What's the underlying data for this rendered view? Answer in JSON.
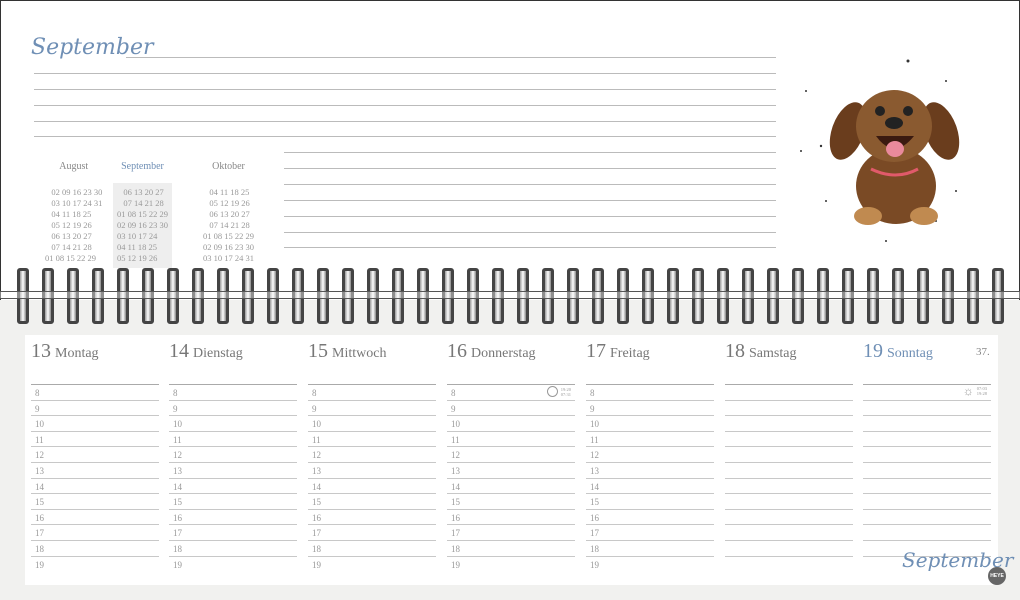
{
  "header": {
    "month_title": "September"
  },
  "mini_calendars": [
    {
      "month": "August",
      "rows": [
        "   02 09 16 23 30",
        "   03 10 17 24 31",
        "   04 11 18 25",
        "   05 12 19 26",
        "   06 13 20 27",
        "   07 14 21 28",
        "01 08 15 22 29"
      ],
      "current": false
    },
    {
      "month": "September",
      "rows": [
        "   06 13 20 27",
        "   07 14 21 28",
        "01 08 15 22 29",
        "02 09 16 23 30",
        "03 10 17 24",
        "04 11 18 25",
        "05 12 19 26"
      ],
      "current": true
    },
    {
      "month": "Oktober",
      "rows": [
        "   04 11 18 25",
        "   05 12 19 26",
        "   06 13 20 27",
        "   07 14 21 28",
        "01 08 15 22 29",
        "02 09 16 23 30",
        "03 10 17 24 31"
      ],
      "current": false
    }
  ],
  "days": [
    {
      "num": "13",
      "name": "Montag"
    },
    {
      "num": "14",
      "name": "Dienstag"
    },
    {
      "num": "15",
      "name": "Mittwoch"
    },
    {
      "num": "16",
      "name": "Donnerstag",
      "icon": "full-moon-icon",
      "times": [
        "19:20",
        "07:31"
      ]
    },
    {
      "num": "17",
      "name": "Freitag"
    },
    {
      "num": "18",
      "name": "Samstag"
    },
    {
      "num": "19",
      "name": "Sonntag",
      "icon": "sun-icon",
      "times": [
        "07:03",
        "19:28"
      ]
    }
  ],
  "hours": [
    "8",
    "9",
    "10",
    "11",
    "12",
    "13",
    "14",
    "15",
    "16",
    "17",
    "18",
    "19"
  ],
  "week_number": "37.",
  "footer": {
    "signature": "September",
    "brand": "HEYE"
  },
  "colors": {
    "accent": "#6f8fb5",
    "dog": "#7a4a25"
  }
}
